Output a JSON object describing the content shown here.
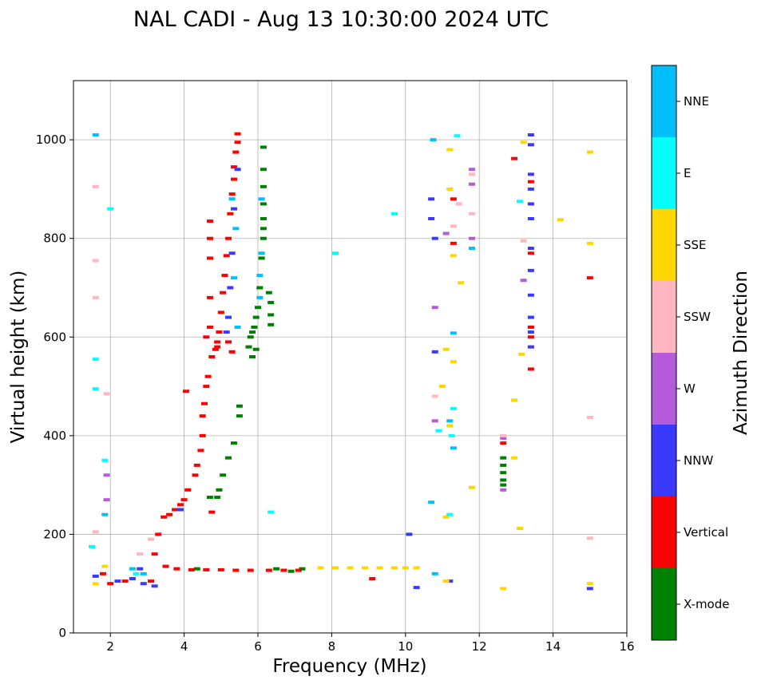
{
  "chart_data": {
    "type": "scatter",
    "title": "NAL CADI - Aug 13 10:30:00 2024 UTC",
    "xlabel": "Frequency (MHz)",
    "ylabel": "Virtual height (km)",
    "xlim": [
      1,
      16
    ],
    "ylim": [
      0,
      1120
    ],
    "xticks": [
      2,
      4,
      6,
      8,
      10,
      12,
      14,
      16
    ],
    "yticks": [
      0,
      200,
      400,
      600,
      800,
      1000
    ],
    "grid": true,
    "colorbar": {
      "label": "Azimuth Direction",
      "position": "right",
      "categories": [
        {
          "name": "X-mode",
          "color": "#008000"
        },
        {
          "name": "Vertical",
          "color": "#ff0000"
        },
        {
          "name": "NNW",
          "color": "#3a3aff"
        },
        {
          "name": "W",
          "color": "#b45adb"
        },
        {
          "name": "SSW",
          "color": "#ffb6c1"
        },
        {
          "name": "SSE",
          "color": "#ffd700"
        },
        {
          "name": "E",
          "color": "#00ffff"
        },
        {
          "name": "NNE",
          "color": "#00bfff"
        }
      ]
    },
    "echoes": {
      "X-mode": [
        [
          6.15,
          985
        ],
        [
          6.15,
          940
        ],
        [
          6.15,
          905
        ],
        [
          6.15,
          870
        ],
        [
          6.15,
          840
        ],
        [
          6.15,
          820
        ],
        [
          6.15,
          800
        ],
        [
          6.1,
          760
        ],
        [
          6.05,
          700
        ],
        [
          6.0,
          660
        ],
        [
          5.95,
          640
        ],
        [
          5.9,
          620
        ],
        [
          5.85,
          610
        ],
        [
          5.8,
          600
        ],
        [
          5.75,
          580
        ],
        [
          5.85,
          560
        ],
        [
          5.95,
          575
        ],
        [
          6.3,
          690
        ],
        [
          6.35,
          670
        ],
        [
          6.35,
          645
        ],
        [
          6.35,
          625
        ],
        [
          5.5,
          460
        ],
        [
          5.5,
          440
        ],
        [
          5.35,
          385
        ],
        [
          5.2,
          355
        ],
        [
          5.05,
          320
        ],
        [
          4.95,
          290
        ],
        [
          4.9,
          275
        ],
        [
          4.7,
          275
        ],
        [
          6.5,
          130
        ],
        [
          6.9,
          125
        ],
        [
          7.2,
          130
        ],
        [
          12.65,
          355
        ],
        [
          12.65,
          340
        ],
        [
          12.65,
          325
        ],
        [
          12.65,
          310
        ],
        [
          12.65,
          300
        ],
        [
          4.35,
          130
        ]
      ],
      "Vertical": [
        [
          5.45,
          1012
        ],
        [
          5.45,
          995
        ],
        [
          5.4,
          975
        ],
        [
          5.35,
          945
        ],
        [
          5.35,
          920
        ],
        [
          5.3,
          890
        ],
        [
          5.25,
          850
        ],
        [
          5.2,
          800
        ],
        [
          5.15,
          765
        ],
        [
          5.1,
          725
        ],
        [
          5.05,
          690
        ],
        [
          5.0,
          650
        ],
        [
          4.95,
          610
        ],
        [
          4.9,
          590
        ],
        [
          4.85,
          575
        ],
        [
          4.75,
          560
        ],
        [
          4.65,
          520
        ],
        [
          4.6,
          500
        ],
        [
          4.6,
          600
        ],
        [
          4.7,
          620
        ],
        [
          4.7,
          680
        ],
        [
          4.7,
          760
        ],
        [
          4.7,
          800
        ],
        [
          4.7,
          835
        ],
        [
          4.55,
          465
        ],
        [
          4.5,
          440
        ],
        [
          4.5,
          400
        ],
        [
          4.45,
          370
        ],
        [
          4.35,
          340
        ],
        [
          4.3,
          320
        ],
        [
          4.1,
          290
        ],
        [
          4.0,
          270
        ],
        [
          3.9,
          260
        ],
        [
          3.75,
          250
        ],
        [
          3.6,
          240
        ],
        [
          3.45,
          235
        ],
        [
          4.05,
          490
        ],
        [
          4.75,
          245
        ],
        [
          5.2,
          590
        ],
        [
          5.3,
          570
        ],
        [
          4.9,
          580
        ],
        [
          3.3,
          200
        ],
        [
          3.2,
          160
        ],
        [
          3.5,
          135
        ],
        [
          3.8,
          130
        ],
        [
          4.2,
          128
        ],
        [
          4.6,
          128
        ],
        [
          5.0,
          128
        ],
        [
          5.4,
          127
        ],
        [
          5.8,
          127
        ],
        [
          6.3,
          127
        ],
        [
          6.7,
          127
        ],
        [
          7.1,
          127
        ],
        [
          9.1,
          110
        ],
        [
          11.3,
          880
        ],
        [
          11.3,
          790
        ],
        [
          12.65,
          385
        ],
        [
          12.95,
          962
        ],
        [
          13.4,
          915
        ],
        [
          13.4,
          770
        ],
        [
          13.4,
          620
        ],
        [
          13.4,
          600
        ],
        [
          13.4,
          535
        ],
        [
          15.0,
          720
        ],
        [
          2.4,
          105
        ],
        [
          2.0,
          100
        ],
        [
          1.8,
          120
        ],
        [
          3.1,
          105
        ]
      ],
      "NNW": [
        [
          13.4,
          1010
        ],
        [
          13.4,
          990
        ],
        [
          13.4,
          930
        ],
        [
          13.4,
          900
        ],
        [
          13.4,
          870
        ],
        [
          13.4,
          840
        ],
        [
          13.4,
          780
        ],
        [
          13.4,
          735
        ],
        [
          13.4,
          685
        ],
        [
          13.4,
          640
        ],
        [
          13.4,
          610
        ],
        [
          13.4,
          580
        ],
        [
          5.45,
          940
        ],
        [
          5.35,
          860
        ],
        [
          5.3,
          770
        ],
        [
          5.25,
          700
        ],
        [
          5.2,
          640
        ],
        [
          5.15,
          610
        ],
        [
          3.9,
          250
        ],
        [
          2.8,
          130
        ],
        [
          2.6,
          110
        ],
        [
          2.9,
          100
        ],
        [
          3.2,
          95
        ],
        [
          2.2,
          105
        ],
        [
          1.6,
          115
        ],
        [
          10.7,
          840
        ],
        [
          10.8,
          800
        ],
        [
          10.8,
          570
        ],
        [
          10.1,
          200
        ],
        [
          10.3,
          92
        ],
        [
          10.7,
          880
        ],
        [
          15.0,
          90
        ],
        [
          11.2,
          105
        ]
      ],
      "W": [
        [
          11.8,
          940
        ],
        [
          11.8,
          910
        ],
        [
          11.8,
          800
        ],
        [
          10.8,
          430
        ],
        [
          10.8,
          660
        ],
        [
          13.2,
          715
        ],
        [
          12.65,
          395
        ],
        [
          12.65,
          290
        ],
        [
          11.1,
          810
        ],
        [
          1.9,
          320
        ],
        [
          1.9,
          270
        ]
      ],
      "SSW": [
        [
          1.6,
          905
        ],
        [
          1.6,
          755
        ],
        [
          1.6,
          680
        ],
        [
          1.9,
          485
        ],
        [
          11.8,
          930
        ],
        [
          11.8,
          850
        ],
        [
          11.3,
          825
        ],
        [
          12.65,
          400
        ],
        [
          15.0,
          437
        ],
        [
          15.0,
          192
        ],
        [
          13.2,
          795
        ],
        [
          3.1,
          190
        ],
        [
          2.8,
          160
        ],
        [
          1.6,
          205
        ],
        [
          10.8,
          480
        ],
        [
          11.45,
          870
        ]
      ],
      "SSE": [
        [
          7.7,
          132
        ],
        [
          8.1,
          132
        ],
        [
          8.5,
          132
        ],
        [
          8.9,
          132
        ],
        [
          9.3,
          132
        ],
        [
          9.7,
          132
        ],
        [
          10.0,
          132
        ],
        [
          10.3,
          132
        ],
        [
          11.2,
          980
        ],
        [
          11.2,
          900
        ],
        [
          11.3,
          765
        ],
        [
          11.5,
          710
        ],
        [
          11.1,
          575
        ],
        [
          11.3,
          550
        ],
        [
          11.0,
          500
        ],
        [
          11.2,
          420
        ],
        [
          11.1,
          235
        ],
        [
          11.1,
          105
        ],
        [
          12.65,
          90
        ],
        [
          12.95,
          355
        ],
        [
          13.1,
          212
        ],
        [
          13.15,
          565
        ],
        [
          13.2,
          995
        ],
        [
          14.2,
          838
        ],
        [
          15.0,
          975
        ],
        [
          15.0,
          790
        ],
        [
          15.0,
          100
        ],
        [
          1.6,
          100
        ],
        [
          1.85,
          135
        ],
        [
          11.8,
          295
        ],
        [
          12.95,
          472
        ]
      ],
      "E": [
        [
          8.1,
          770
        ],
        [
          9.7,
          850
        ],
        [
          6.35,
          245
        ],
        [
          10.9,
          410
        ],
        [
          11.3,
          455
        ],
        [
          11.2,
          240
        ],
        [
          13.1,
          875
        ],
        [
          11.25,
          400
        ],
        [
          2.0,
          860
        ],
        [
          1.6,
          555
        ],
        [
          1.6,
          495
        ],
        [
          1.85,
          350
        ],
        [
          1.5,
          175
        ],
        [
          2.7,
          120
        ],
        [
          11.4,
          1008
        ]
      ],
      "NNE": [
        [
          1.6,
          1010
        ],
        [
          6.1,
          880
        ],
        [
          6.1,
          770
        ],
        [
          6.05,
          725
        ],
        [
          6.05,
          680
        ],
        [
          5.45,
          620
        ],
        [
          5.35,
          720
        ],
        [
          5.4,
          820
        ],
        [
          5.3,
          880
        ],
        [
          2.9,
          120
        ],
        [
          11.3,
          608
        ],
        [
          11.3,
          375
        ],
        [
          11.2,
          430
        ],
        [
          10.7,
          265
        ],
        [
          10.8,
          120
        ],
        [
          10.75,
          1000
        ],
        [
          11.8,
          780
        ],
        [
          1.85,
          240
        ],
        [
          2.6,
          130
        ]
      ]
    }
  }
}
